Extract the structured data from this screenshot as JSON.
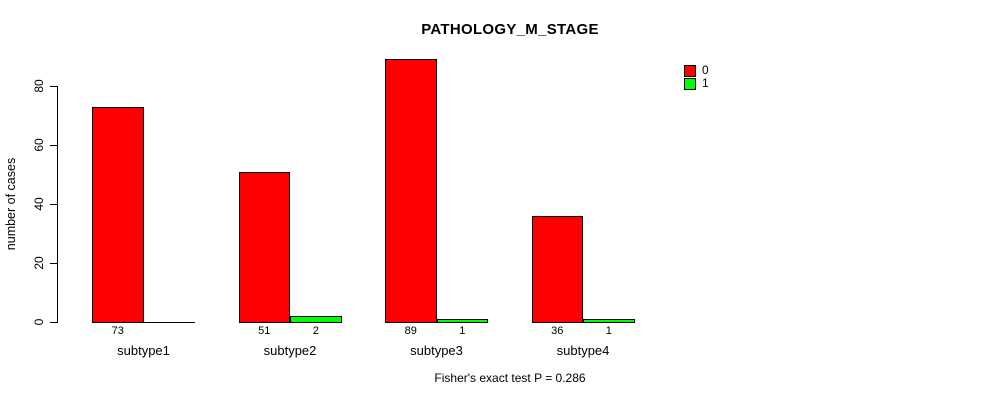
{
  "chart_data": {
    "type": "bar",
    "title": "PATHOLOGY_M_STAGE",
    "ylabel": "number of cases",
    "xlabel": "",
    "categories": [
      "subtype1",
      "subtype2",
      "subtype3",
      "subtype4"
    ],
    "series": [
      {
        "name": "0",
        "color": "#ff0000",
        "values": [
          73,
          51,
          89,
          36
        ]
      },
      {
        "name": "1",
        "color": "#00ff00",
        "values": [
          0,
          2,
          1,
          1
        ]
      }
    ],
    "yticks": [
      0,
      20,
      40,
      60,
      80
    ],
    "ylim": [
      0,
      89
    ],
    "grid": false,
    "legend_position": "top-right",
    "annotation": "Fisher's exact test P = 0.286"
  },
  "colors": {
    "background": "#ffffff",
    "axis": "#000000",
    "text": "#000000"
  }
}
